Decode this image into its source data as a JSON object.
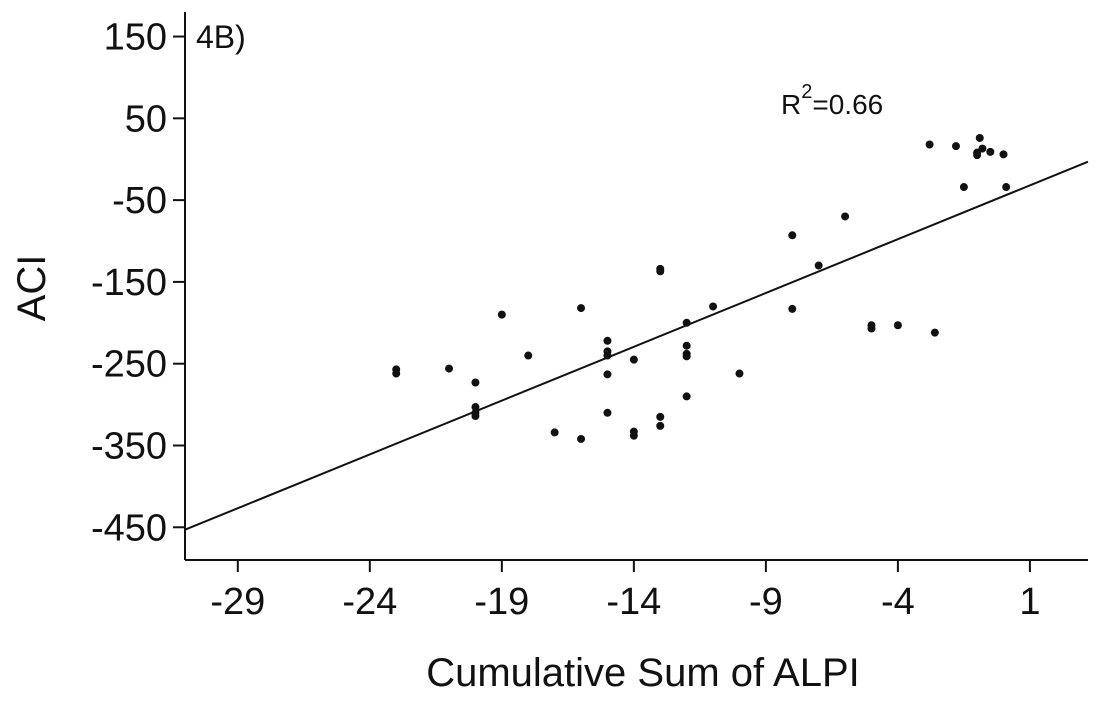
{
  "chart_data": {
    "type": "scatter",
    "panel_label": "4B)",
    "xlabel": "Cumulative Sum of ALPI",
    "ylabel": "ACI",
    "annotation": {
      "prefix": "R",
      "superscript": "2",
      "suffix": "=0.66"
    },
    "xlim": [
      -31,
      3.2
    ],
    "ylim": [
      -490,
      180
    ],
    "xticks": [
      -29,
      -24,
      -19,
      -14,
      -9,
      -4,
      1
    ],
    "yticks": [
      150,
      50,
      -50,
      -150,
      -250,
      -350,
      -450
    ],
    "grid": false,
    "legend": "none",
    "points": [
      {
        "x": -23,
        "y": -257
      },
      {
        "x": -23,
        "y": -262
      },
      {
        "x": -21,
        "y": -256
      },
      {
        "x": -20,
        "y": -273
      },
      {
        "x": -20,
        "y": -303
      },
      {
        "x": -20,
        "y": -310
      },
      {
        "x": -20,
        "y": -314
      },
      {
        "x": -19,
        "y": -190
      },
      {
        "x": -18,
        "y": -240
      },
      {
        "x": -17,
        "y": -334
      },
      {
        "x": -16,
        "y": -182
      },
      {
        "x": -16,
        "y": -342
      },
      {
        "x": -15,
        "y": -222
      },
      {
        "x": -15,
        "y": -235
      },
      {
        "x": -15,
        "y": -240
      },
      {
        "x": -15,
        "y": -263
      },
      {
        "x": -15,
        "y": -310
      },
      {
        "x": -14,
        "y": -245
      },
      {
        "x": -14,
        "y": -333
      },
      {
        "x": -14,
        "y": -338
      },
      {
        "x": -13,
        "y": -134
      },
      {
        "x": -13,
        "y": -137
      },
      {
        "x": -13,
        "y": -315
      },
      {
        "x": -13,
        "y": -326
      },
      {
        "x": -12,
        "y": -200
      },
      {
        "x": -12,
        "y": -228
      },
      {
        "x": -12,
        "y": -238
      },
      {
        "x": -12,
        "y": -241
      },
      {
        "x": -12,
        "y": -290
      },
      {
        "x": -11,
        "y": -180
      },
      {
        "x": -10,
        "y": -262
      },
      {
        "x": -8,
        "y": -93
      },
      {
        "x": -8,
        "y": -183
      },
      {
        "x": -7,
        "y": -130
      },
      {
        "x": -6,
        "y": -70
      },
      {
        "x": -5,
        "y": -203
      },
      {
        "x": -5,
        "y": -207
      },
      {
        "x": -4,
        "y": -203
      },
      {
        "x": -2.6,
        "y": -212
      },
      {
        "x": -2.8,
        "y": 18
      },
      {
        "x": -1.8,
        "y": 16
      },
      {
        "x": -1.5,
        "y": -34
      },
      {
        "x": -1,
        "y": 5
      },
      {
        "x": -1,
        "y": 8
      },
      {
        "x": -0.9,
        "y": 26
      },
      {
        "x": -0.8,
        "y": 13
      },
      {
        "x": -0.5,
        "y": 9
      },
      {
        "x": 0,
        "y": 6
      },
      {
        "x": 0.1,
        "y": -34
      }
    ],
    "fit_line": [
      {
        "x": -31,
        "y": -453
      },
      {
        "x": 3.2,
        "y": -3
      }
    ]
  }
}
